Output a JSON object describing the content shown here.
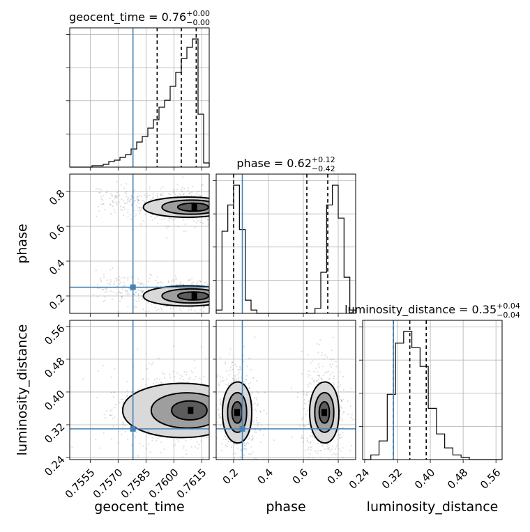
{
  "colors": {
    "truth": "#4682b4",
    "hist": "#000000",
    "grid": "#b0b0b0"
  },
  "chart_data": {
    "type": "corner",
    "parameters": [
      "geocent_time",
      "phase",
      "luminosity_distance"
    ],
    "truths": {
      "geocent_time": 0.7578,
      "phase": 0.25,
      "luminosity_distance": 0.31
    },
    "titles": [
      {
        "param": "geocent_time",
        "prefix": "geocent_time = 0.76",
        "plus": "+0.00",
        "minus": "−0.00"
      },
      {
        "param": "phase",
        "prefix": "phase = 0.62",
        "plus": "+0.12",
        "minus": "−0.42"
      },
      {
        "param": "luminosity_distance",
        "prefix": "luminosity_distance = 0.35",
        "plus": "+0.04",
        "minus": "−0.04"
      }
    ],
    "axes": {
      "geocent_time": {
        "label": "geocent_time",
        "range": [
          0.7544,
          0.7619
        ],
        "ticks": [
          0.7555,
          0.757,
          0.7585,
          0.76,
          0.7615
        ],
        "tick_labels": [
          "0.7555",
          "0.7570",
          "0.7585",
          "0.7600",
          "0.7615"
        ]
      },
      "phase": {
        "label": "phase",
        "range": [
          0.1,
          0.9
        ],
        "ticks": [
          0.2,
          0.4,
          0.6,
          0.8
        ],
        "tick_labels": [
          "0.2",
          "0.4",
          "0.6",
          "0.8"
        ]
      },
      "luminosity_distance": {
        "label": "luminosity_distance",
        "range": [
          0.235,
          0.575
        ],
        "ticks": [
          0.24,
          0.32,
          0.4,
          0.48,
          0.56
        ],
        "tick_labels": [
          "0.24",
          "0.32",
          "0.40",
          "0.48",
          "0.56"
        ]
      }
    },
    "histograms": {
      "geocent_time": {
        "range": [
          0.7544,
          0.7619
        ],
        "counts": [
          0,
          0,
          0,
          0,
          1,
          1,
          2,
          4,
          5,
          7,
          9,
          13,
          18,
          22,
          28,
          34,
          43,
          48,
          58,
          68,
          78,
          86,
          92,
          38,
          3
        ],
        "quantiles": [
          0.7591,
          0.7604,
          0.7612
        ]
      },
      "phase": {
        "range": [
          0.1,
          0.9
        ],
        "counts": [
          2,
          50,
          66,
          78,
          51,
          8,
          2,
          0,
          0,
          0,
          0,
          0,
          0,
          0,
          0,
          0,
          0,
          3,
          25,
          66,
          78,
          58,
          22,
          2
        ],
        "quantiles": [
          0.2,
          0.62,
          0.74
        ]
      },
      "luminosity_distance": {
        "range": [
          0.235,
          0.575
        ],
        "counts": [
          0,
          2,
          8,
          28,
          50,
          55,
          48,
          40,
          22,
          11,
          5,
          2,
          1,
          0,
          0,
          0,
          0
        ],
        "quantiles": [
          0.31,
          0.35,
          0.39
        ]
      }
    },
    "pairs": [
      {
        "x": "geocent_time",
        "y": "phase",
        "clusters": [
          {
            "cx": 0.7611,
            "cy": 0.71,
            "sx": 0.0009,
            "sy": 0.035,
            "levels": [
              1.0,
              0.7,
              0.4
            ],
            "tail_to_x": 0.7558
          },
          {
            "cx": 0.7611,
            "cy": 0.2,
            "sx": 0.0009,
            "sy": 0.035,
            "levels": [
              1.0,
              0.7,
              0.4
            ],
            "tail_to_x": 0.7558
          }
        ]
      },
      {
        "x": "geocent_time",
        "y": "luminosity_distance",
        "clusters": [
          {
            "cx": 0.7609,
            "cy": 0.355,
            "sx": 0.0012,
            "sy": 0.04,
            "levels": [
              1.0,
              0.65,
              0.35
            ],
            "tail_to_x": 0.7565
          }
        ]
      },
      {
        "x": "phase",
        "y": "luminosity_distance",
        "clusters": [
          {
            "cx": 0.22,
            "cy": 0.35,
            "sx": 0.04,
            "sy": 0.045,
            "levels": [
              1.0,
              0.65,
              0.35
            ]
          },
          {
            "cx": 0.72,
            "cy": 0.35,
            "sx": 0.04,
            "sy": 0.045,
            "levels": [
              1.0,
              0.65,
              0.35
            ]
          }
        ]
      }
    ]
  }
}
